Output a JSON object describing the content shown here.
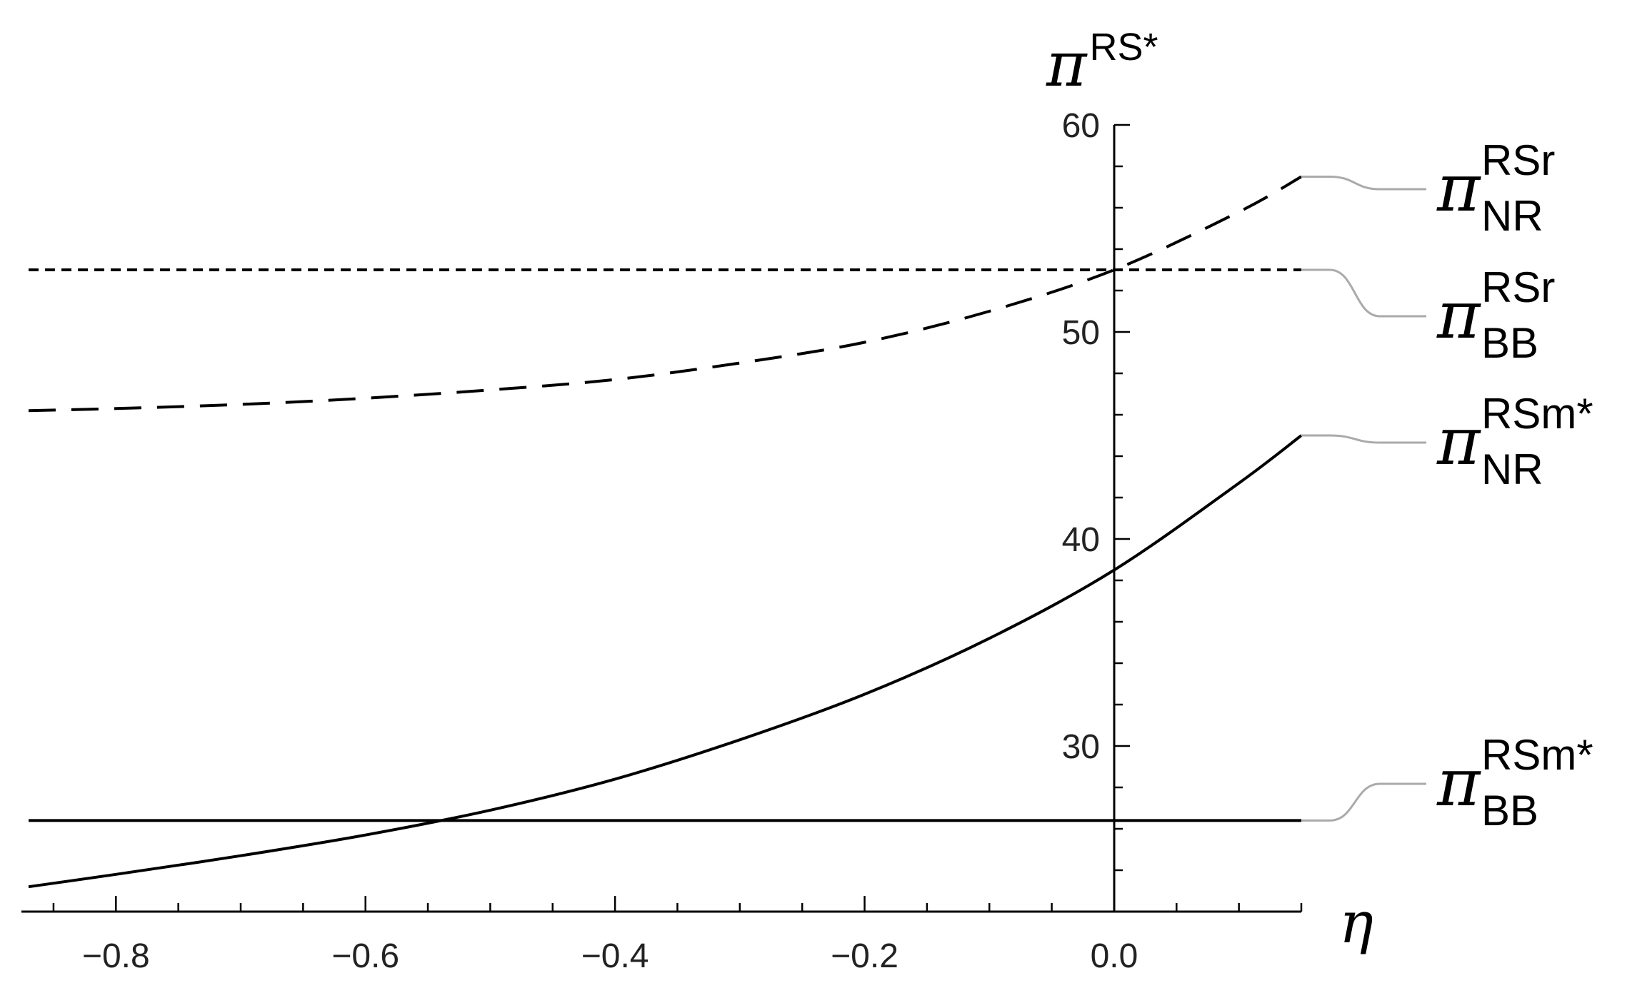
{
  "chart_data": {
    "type": "line",
    "title": "",
    "xlabel": "η",
    "ylabel": {
      "symbol": "π",
      "sup": "RS*"
    },
    "xlim": [
      -0.87,
      0.15
    ],
    "ylim": [
      22,
      60
    ],
    "x_ticks": [
      {
        "value": -0.8,
        "label": "−0.8"
      },
      {
        "value": -0.6,
        "label": "−0.6"
      },
      {
        "value": -0.4,
        "label": "−0.4"
      },
      {
        "value": -0.2,
        "label": "−0.2"
      },
      {
        "value": 0.0,
        "label": "0.0"
      }
    ],
    "y_ticks": [
      {
        "value": 30,
        "label": "30"
      },
      {
        "value": 40,
        "label": "40"
      },
      {
        "value": 50,
        "label": "50"
      },
      {
        "value": 60,
        "label": "60"
      }
    ],
    "grid": false,
    "legend": "right (direct line labels)",
    "series": [
      {
        "key": "nr_rsr",
        "style": "long-dash",
        "label": {
          "symbol": "π",
          "sup": "RSr",
          "sub": "NR"
        },
        "x": [
          -0.87,
          -0.8,
          -0.7,
          -0.6,
          -0.5,
          -0.4,
          -0.3,
          -0.2,
          -0.1,
          0.0,
          0.1,
          0.15
        ],
        "y": [
          46.2,
          46.3,
          46.5,
          46.8,
          47.2,
          47.7,
          48.5,
          49.5,
          51.0,
          53.0,
          55.8,
          57.5
        ]
      },
      {
        "key": "bb_rsr",
        "style": "short-dash",
        "label": {
          "symbol": "π",
          "sup": "RSr",
          "sub": "BB"
        },
        "x": [
          -0.87,
          0.15
        ],
        "y": [
          53.0,
          53.0
        ]
      },
      {
        "key": "nr_rsm",
        "style": "solid",
        "label": {
          "symbol": "π",
          "sup": "RSm*",
          "sub": "NR"
        },
        "x": [
          -0.87,
          -0.8,
          -0.7,
          -0.6,
          -0.5,
          -0.4,
          -0.3,
          -0.2,
          -0.1,
          0.0,
          0.1,
          0.15
        ],
        "y": [
          23.2,
          23.8,
          24.7,
          25.7,
          26.9,
          28.4,
          30.3,
          32.5,
          35.2,
          38.5,
          42.7,
          45.0
        ]
      },
      {
        "key": "bb_rsm",
        "style": "solid",
        "label": {
          "symbol": "π",
          "sup": "RSm*",
          "sub": "BB"
        },
        "x": [
          -0.87,
          0.15
        ],
        "y": [
          26.4,
          26.4
        ]
      }
    ],
    "colors": {
      "curve": "#000000",
      "axis": "#000000",
      "leader": "#aaaaaa",
      "tick_label": "#222222"
    }
  }
}
